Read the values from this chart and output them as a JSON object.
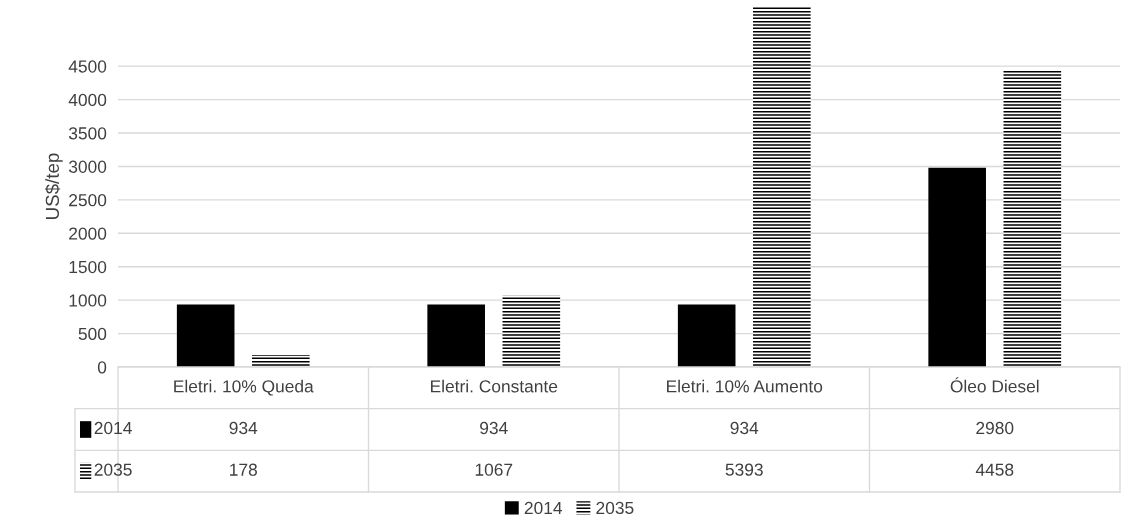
{
  "chart_data": {
    "type": "bar",
    "ylabel": "US$/tep",
    "categories": [
      "Eletri. 10% Queda",
      "Eletri. Constante",
      "Eletri. 10% Aumento",
      "Óleo Diesel"
    ],
    "series": [
      {
        "name": "2014",
        "color": "#000000",
        "values": [
          934,
          934,
          934,
          2980
        ]
      },
      {
        "name": "2035",
        "color": "#000000",
        "values": [
          178,
          1067,
          5393,
          4458
        ]
      }
    ],
    "ylim": [
      0,
      5400
    ],
    "yticks": [
      0,
      500,
      1000,
      1500,
      2000,
      2500,
      3000,
      3500,
      4000,
      4500
    ],
    "grid": "y",
    "legend": "bottom",
    "data_labels": true
  }
}
